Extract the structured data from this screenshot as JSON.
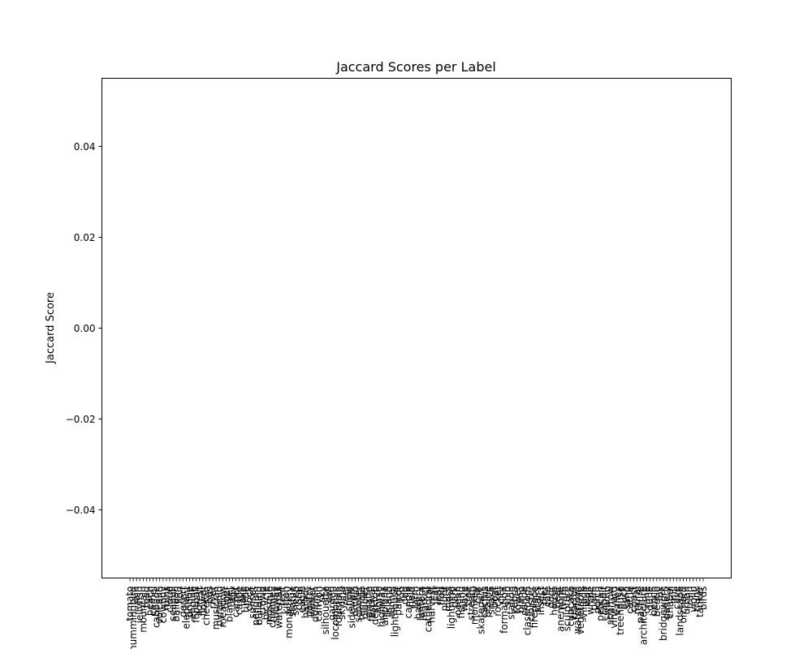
{
  "chart_data": {
    "type": "bar",
    "title": "Jaccard Scores per Label",
    "xlabel": "",
    "ylabel": "Jaccard Score",
    "ylim": [
      -0.055,
      0.055
    ],
    "yticks": [
      -0.04,
      -0.02,
      0.0,
      0.02,
      0.04
    ],
    "ytick_labels": [
      "−0.04",
      "−0.02",
      "0.00",
      "0.02",
      "0.04"
    ],
    "grid": false,
    "categories": [
      "tomato",
      "hummingbird",
      "rain",
      "jellyfish",
      "mountain",
      "road",
      "beach",
      "camel",
      "cabbage",
      "volcano",
      "cowboy",
      "ruins",
      "cloud",
      "seagull",
      "balloon",
      "lion",
      "desert",
      "elephant",
      "bridge",
      "engine",
      "football",
      "forest",
      "flower",
      "cheetah",
      "bus",
      "river",
      "musician",
      "pyramid",
      "meadow",
      "tiger",
      "blanket",
      "rally",
      "carpet",
      "castle",
      "lake",
      "turtle",
      "clock",
      "sunset",
      "penguin",
      "building",
      "crowd",
      "bicycle",
      "mosque",
      "chimney",
      "subway",
      "waterfall",
      "tent",
      "kitten",
      "monastery",
      "statue",
      "sheep",
      "coral",
      "eagle",
      "harbor",
      "pastry",
      "winter",
      "dolphin",
      "canyon",
      "sky",
      "silhouette",
      "owl",
      "garden",
      "locomotive",
      "fountain",
      "skyline",
      "reef",
      "snow",
      "sidewalk",
      "orchid",
      "scooter",
      "temple",
      "glacier",
      "giraffe",
      "festival",
      "desktop",
      "horse",
      "highway",
      "airplane",
      "island",
      "tunnel",
      "lighthouse",
      "parrot",
      "fog",
      "dog",
      "candle",
      "field",
      "farm",
      "bakery",
      "lantern",
      "market",
      "cathedral",
      "harvest",
      "cat",
      "leaf",
      "frog",
      "night",
      "moss",
      "lightning",
      "park",
      "ocean",
      "fishing",
      "wave",
      "tree",
      "stream",
      "monkey",
      "cliff",
      "skatepark",
      "cactus",
      "prairie",
      "snake",
      "boat",
      "rocket",
      "city",
      "formation",
      "ship",
      "station",
      "zebra",
      "tower",
      "piano",
      "canoe",
      "classroom",
      "cloister",
      "fireplace",
      "stairs",
      "insect",
      "pier",
      "cafe",
      "door",
      "house",
      "bear",
      "anemone",
      "tram",
      "sculpture",
      "cupcake",
      "tractor",
      "waterfowl",
      "vegetable",
      "village",
      "wolf",
      "whale",
      "palm",
      "porch",
      "pelican",
      "rabbit",
      "swamp",
      "sparrow",
      "vineyard",
      "valley",
      "treehouse",
      "duck",
      "sand",
      "cattle",
      "coast",
      "mural",
      "pasture",
      "architecture",
      "crane",
      "dune",
      "bench",
      "beetle",
      "fox",
      "bridgework",
      "gallery",
      "chapel",
      "mill",
      "cave",
      "landscape",
      "orchard",
      "urban",
      "train",
      "violin",
      "trunk",
      "tanker",
      "birds"
    ],
    "values": [
      0,
      0,
      0,
      0,
      0,
      0,
      0,
      0,
      0,
      0,
      0,
      0,
      0,
      0,
      0,
      0,
      0,
      0,
      0,
      0,
      0,
      0,
      0,
      0,
      0,
      0,
      0,
      0,
      0,
      0,
      0,
      0,
      0,
      0,
      0,
      0,
      0,
      0,
      0,
      0,
      0,
      0,
      0,
      0,
      0,
      0,
      0,
      0,
      0,
      0,
      0,
      0,
      0,
      0,
      0,
      0,
      0,
      0,
      0,
      0,
      0,
      0,
      0,
      0,
      0,
      0,
      0,
      0,
      0,
      0,
      0,
      0,
      0,
      0,
      0,
      0,
      0,
      0,
      0,
      0,
      0,
      0,
      0,
      0,
      0,
      0,
      0,
      0,
      0,
      0,
      0,
      0,
      0,
      0,
      0,
      0,
      0,
      0,
      0,
      0,
      0,
      0,
      0,
      0,
      0,
      0,
      0,
      0,
      0,
      0,
      0,
      0,
      0,
      0,
      0,
      0,
      0,
      0,
      0,
      0,
      0,
      0,
      0,
      0,
      0,
      0,
      0,
      0,
      0,
      0,
      0,
      0,
      0,
      0,
      0,
      0,
      0,
      0,
      0,
      0,
      0,
      0,
      0,
      0,
      0,
      0,
      0,
      0,
      0,
      0,
      0,
      0,
      0,
      0,
      0,
      0,
      0,
      0,
      0,
      0,
      0,
      0,
      0,
      0,
      0,
      0,
      0,
      0,
      0,
      0,
      0,
      0,
      0,
      0
    ]
  }
}
